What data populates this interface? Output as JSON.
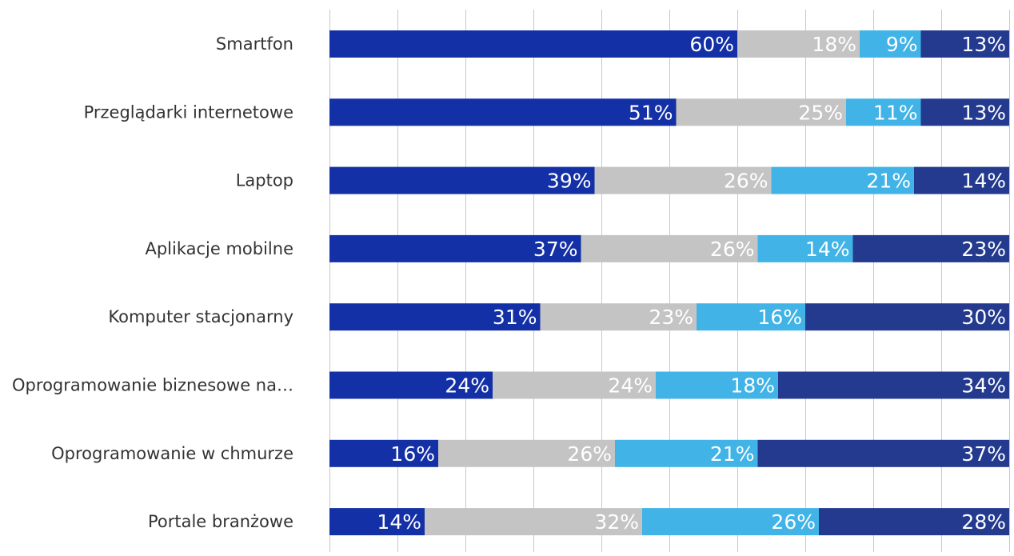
{
  "chart_data": {
    "type": "bar",
    "orientation": "horizontal",
    "stacked": true,
    "percent_stacked": true,
    "title": "",
    "xlabel": "",
    "ylabel": "",
    "xlim": [
      0,
      100
    ],
    "grid": true,
    "categories": [
      "Smartfon",
      "Przeglądarki internetowe",
      "Laptop",
      "Aplikacje mobilne",
      "Komputer stacjonarny",
      "Oprogramowanie biznesowe na…",
      "Oprogramowanie w chmurze",
      "Portale branżowe"
    ],
    "series": [
      {
        "color": "#1430a6",
        "values": [
          60,
          51,
          39,
          37,
          31,
          24,
          16,
          14
        ],
        "labels": [
          "60%",
          "51%",
          "39%",
          "37%",
          "31%",
          "24%",
          "16%",
          "14%"
        ]
      },
      {
        "color": "#c4c4c4",
        "values": [
          18,
          25,
          26,
          26,
          23,
          24,
          26,
          32
        ],
        "labels": [
          "18%",
          "25%",
          "26%",
          "26%",
          "23%",
          "24%",
          "26%",
          "32%"
        ]
      },
      {
        "color": "#41b3e6",
        "values": [
          9,
          11,
          21,
          14,
          16,
          18,
          21,
          26
        ],
        "labels": [
          "9%",
          "11%",
          "21%",
          "14%",
          "16%",
          "18%",
          "21%",
          "26%"
        ]
      },
      {
        "color": "#233a8e",
        "values": [
          13,
          13,
          14,
          23,
          30,
          34,
          37,
          28
        ],
        "labels": [
          "13%",
          "13%",
          "14%",
          "23%",
          "30%",
          "34%",
          "37%",
          "28%"
        ]
      }
    ]
  }
}
